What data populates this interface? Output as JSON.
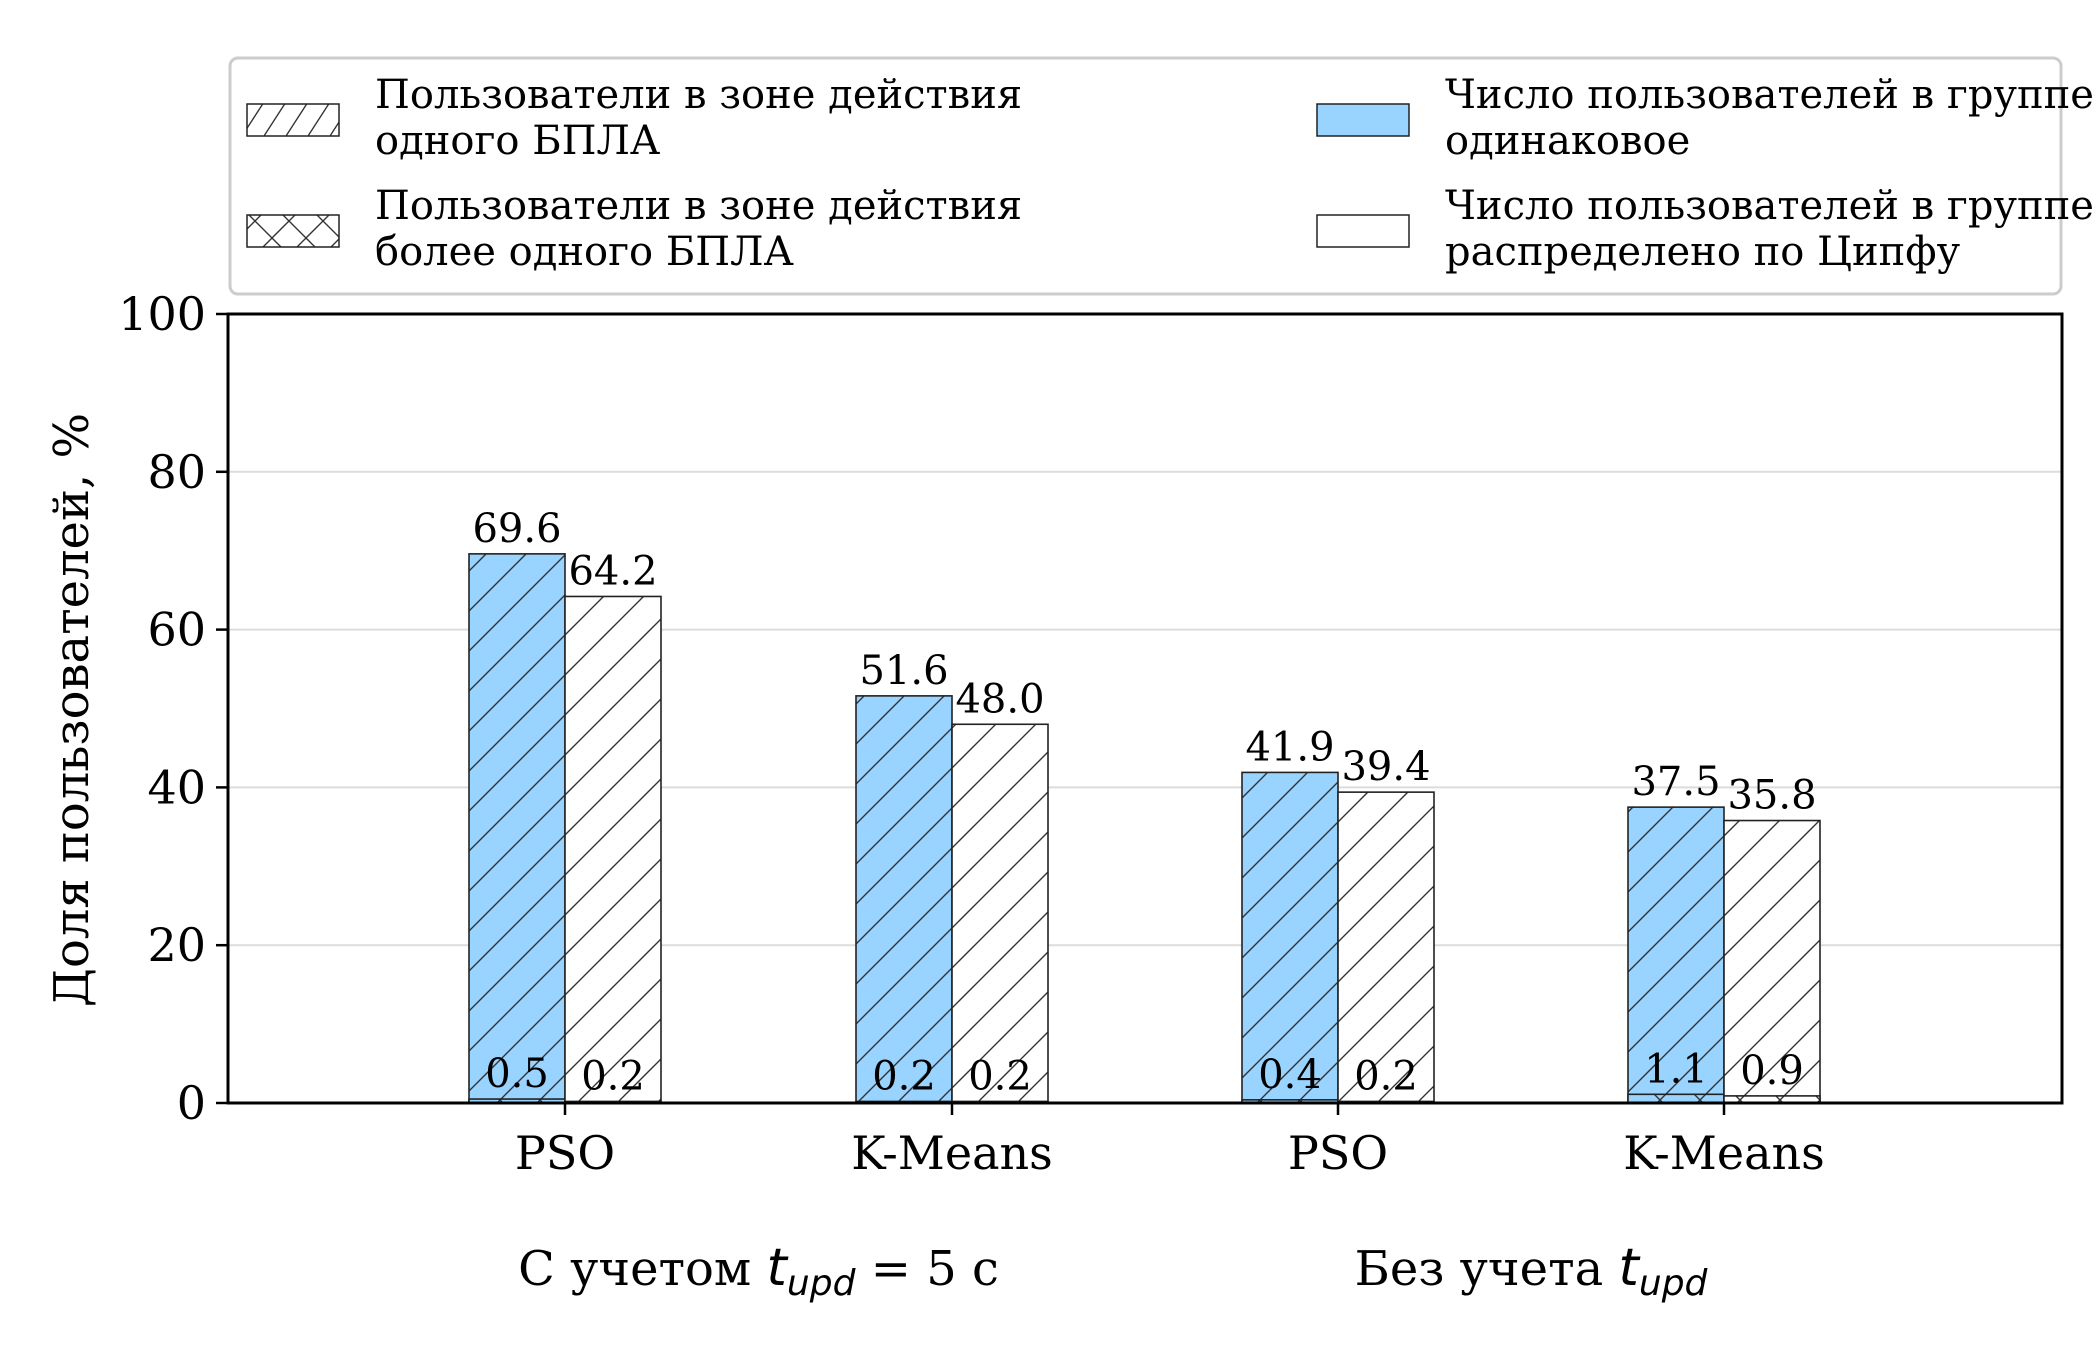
{
  "chart_data": {
    "type": "bar",
    "ylabel": "Доля пользователей, %",
    "ylim": [
      0,
      100
    ],
    "yticks": [
      0,
      20,
      40,
      60,
      80,
      100
    ],
    "grid": "horizontal",
    "legend_position": "top",
    "categories": [
      "PSO",
      "K-Means",
      "PSO",
      "K-Means"
    ],
    "groups": [
      {
        "label_text": "С учетом ",
        "label_math_base": "t",
        "label_math_sub": "upd",
        "label_suffix": " = 5 с",
        "categories": [
          0,
          1
        ]
      },
      {
        "label_text": "Без учета ",
        "label_math_base": "t",
        "label_math_sub": "upd",
        "label_suffix": "",
        "categories": [
          2,
          3
        ]
      }
    ],
    "legend": [
      {
        "key": "one_uav",
        "label_lines": [
          "Пользователи в зоне действия",
          "одного БПЛА"
        ],
        "pattern": "diagonal-hatch"
      },
      {
        "key": "multi_uav",
        "label_lines": [
          "Пользователи в зоне действия",
          "более одного БПЛА"
        ],
        "pattern": "cross-hatch"
      },
      {
        "key": "equal",
        "label_lines": [
          "Число пользователей в группе",
          "одинаковое"
        ],
        "color": "#99d3ff"
      },
      {
        "key": "zipf",
        "label_lines": [
          "Число пользователей в группе",
          "распределено по Ципфу"
        ],
        "color": "#ffffff"
      }
    ],
    "series": [
      {
        "distribution": "equal",
        "color": "#99d3ff",
        "one_uav": [
          69.6,
          51.6,
          41.9,
          37.5
        ],
        "multi_uav": [
          0.5,
          0.2,
          0.4,
          1.1
        ]
      },
      {
        "distribution": "zipf",
        "color": "#ffffff",
        "one_uav": [
          64.2,
          48.0,
          39.4,
          35.8
        ],
        "multi_uav": [
          0.2,
          0.2,
          0.2,
          0.9
        ]
      }
    ]
  }
}
